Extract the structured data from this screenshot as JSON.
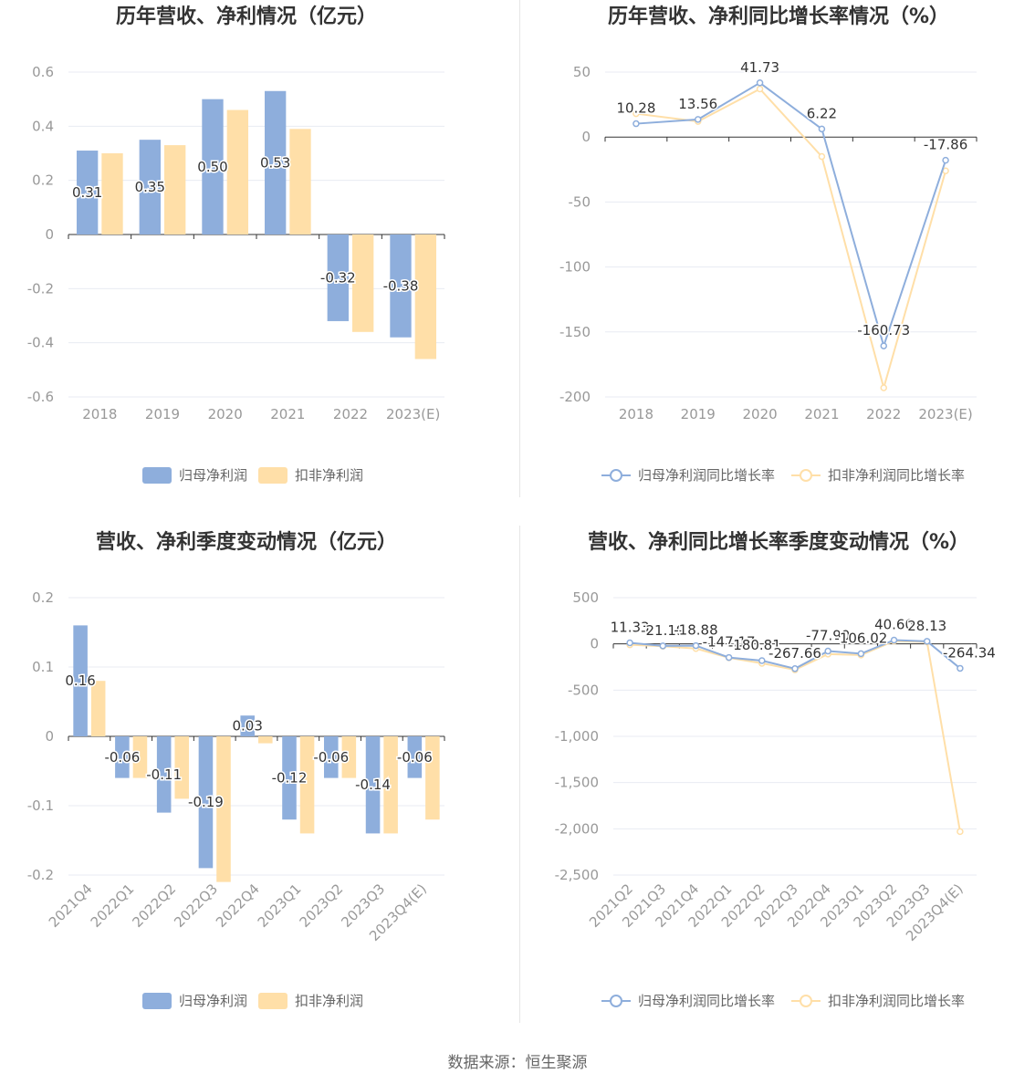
{
  "source_label": "数据来源：恒生聚源",
  "colors": {
    "blue": "#8eaedc",
    "orange": "#ffdfa8",
    "grid": "#e8ebf3",
    "axis": "#333333"
  },
  "chart_data": [
    {
      "id": "annual_profit",
      "type": "bar",
      "title": "历年营收、净利情况（亿元）",
      "categories": [
        "2018",
        "2019",
        "2020",
        "2021",
        "2022",
        "2023(E)"
      ],
      "ylim": [
        -0.6,
        0.6
      ],
      "yticks": [
        0.6,
        0.4,
        0.2,
        0,
        -0.2,
        -0.4,
        -0.6
      ],
      "ytick_labels": [
        "0.6",
        "0.4",
        "0.2",
        "0",
        "-0.2",
        "-0.4",
        "-0.6"
      ],
      "series": [
        {
          "name": "归母净利润",
          "color": "#8eaedc",
          "values": [
            0.31,
            0.35,
            0.5,
            0.53,
            -0.32,
            -0.38
          ],
          "labels": [
            "0.31",
            "0.35",
            "0.50",
            "0.53",
            "-0.32",
            "-0.38"
          ]
        },
        {
          "name": "扣非净利润",
          "color": "#ffdfa8",
          "values": [
            0.3,
            0.33,
            0.46,
            0.39,
            -0.36,
            -0.46
          ]
        }
      ],
      "legend": "bottom",
      "grid": true
    },
    {
      "id": "annual_growth",
      "type": "line",
      "title": "历年营收、净利同比增长率情况（%）",
      "categories": [
        "2018",
        "2019",
        "2020",
        "2021",
        "2022",
        "2023(E)"
      ],
      "ylim": [
        -200,
        50
      ],
      "yticks": [
        50,
        0,
        -50,
        -100,
        -150,
        -200
      ],
      "ytick_labels": [
        "50",
        "0",
        "-50",
        "-100",
        "-150",
        "-200"
      ],
      "series": [
        {
          "name": "归母净利润同比增长率",
          "color": "#8eaedc",
          "values": [
            10.28,
            13.56,
            41.73,
            6.22,
            -160.73,
            -17.86
          ],
          "labels": [
            "10.28",
            "13.56",
            "41.73",
            "6.22",
            "-160.73",
            "-17.86"
          ]
        },
        {
          "name": "扣非净利润同比增长率",
          "color": "#ffdfa8",
          "values": [
            18,
            12,
            37,
            -15,
            -193,
            -26
          ]
        }
      ],
      "legend": "bottom",
      "grid": true
    },
    {
      "id": "quarterly_profit",
      "type": "bar",
      "title": "营收、净利季度变动情况（亿元）",
      "categories": [
        "2021Q4",
        "2022Q1",
        "2022Q2",
        "2022Q3",
        "2022Q4",
        "2023Q1",
        "2023Q2",
        "2023Q3",
        "2023Q4(E)"
      ],
      "ylim": [
        -0.2,
        0.2
      ],
      "yticks": [
        0.2,
        0.1,
        0,
        -0.1,
        -0.2
      ],
      "ytick_labels": [
        "0.2",
        "0.1",
        "0",
        "-0.1",
        "-0.2"
      ],
      "series": [
        {
          "name": "归母净利润",
          "color": "#8eaedc",
          "values": [
            0.16,
            -0.06,
            -0.11,
            -0.19,
            0.03,
            -0.12,
            -0.06,
            -0.14,
            -0.06
          ],
          "labels": [
            "0.16",
            "-0.06",
            "-0.11",
            "-0.19",
            "0.03",
            "-0.12",
            "-0.06",
            "-0.14",
            "-0.06"
          ]
        },
        {
          "name": "扣非净利润",
          "color": "#ffdfa8",
          "values": [
            0.08,
            -0.06,
            -0.09,
            -0.21,
            -0.01,
            -0.14,
            -0.06,
            -0.14,
            -0.12
          ]
        }
      ],
      "legend": "bottom",
      "grid": true
    },
    {
      "id": "quarterly_growth",
      "type": "line",
      "title": "营收、净利同比增长率季度变动情况（%）",
      "categories": [
        "2021Q2",
        "2021Q3",
        "2021Q4",
        "2022Q1",
        "2022Q2",
        "2022Q3",
        "2022Q4",
        "2023Q1",
        "2023Q2",
        "2023Q3",
        "2023Q4(E)"
      ],
      "ylim": [
        -2500,
        500
      ],
      "yticks": [
        500,
        0,
        -500,
        -1000,
        -1500,
        -2000,
        -2500
      ],
      "ytick_labels": [
        "500",
        "0",
        "-500",
        "-1,000",
        "-1,500",
        "-2,000",
        "-2,500"
      ],
      "series": [
        {
          "name": "归母净利润同比增长率",
          "color": "#8eaedc",
          "values": [
            11.33,
            -21.19,
            -18.88,
            -147.17,
            -180.81,
            -267.66,
            -77.9,
            -106.02,
            40.6,
            28.13,
            -264.34
          ],
          "labels": [
            "11.33",
            "-21.19",
            "-18.88",
            "-147.17",
            "-180.81",
            "-267.66",
            "-77.90",
            "-106.02",
            "40.60",
            "28.13",
            "-264.34"
          ]
        },
        {
          "name": "扣非净利润同比增长率",
          "color": "#ffdfa8",
          "values": [
            -10,
            -25,
            -50,
            -150,
            -210,
            -280,
            -110,
            -120,
            30,
            20,
            -2030
          ]
        }
      ],
      "legend": "bottom",
      "grid": true
    }
  ]
}
